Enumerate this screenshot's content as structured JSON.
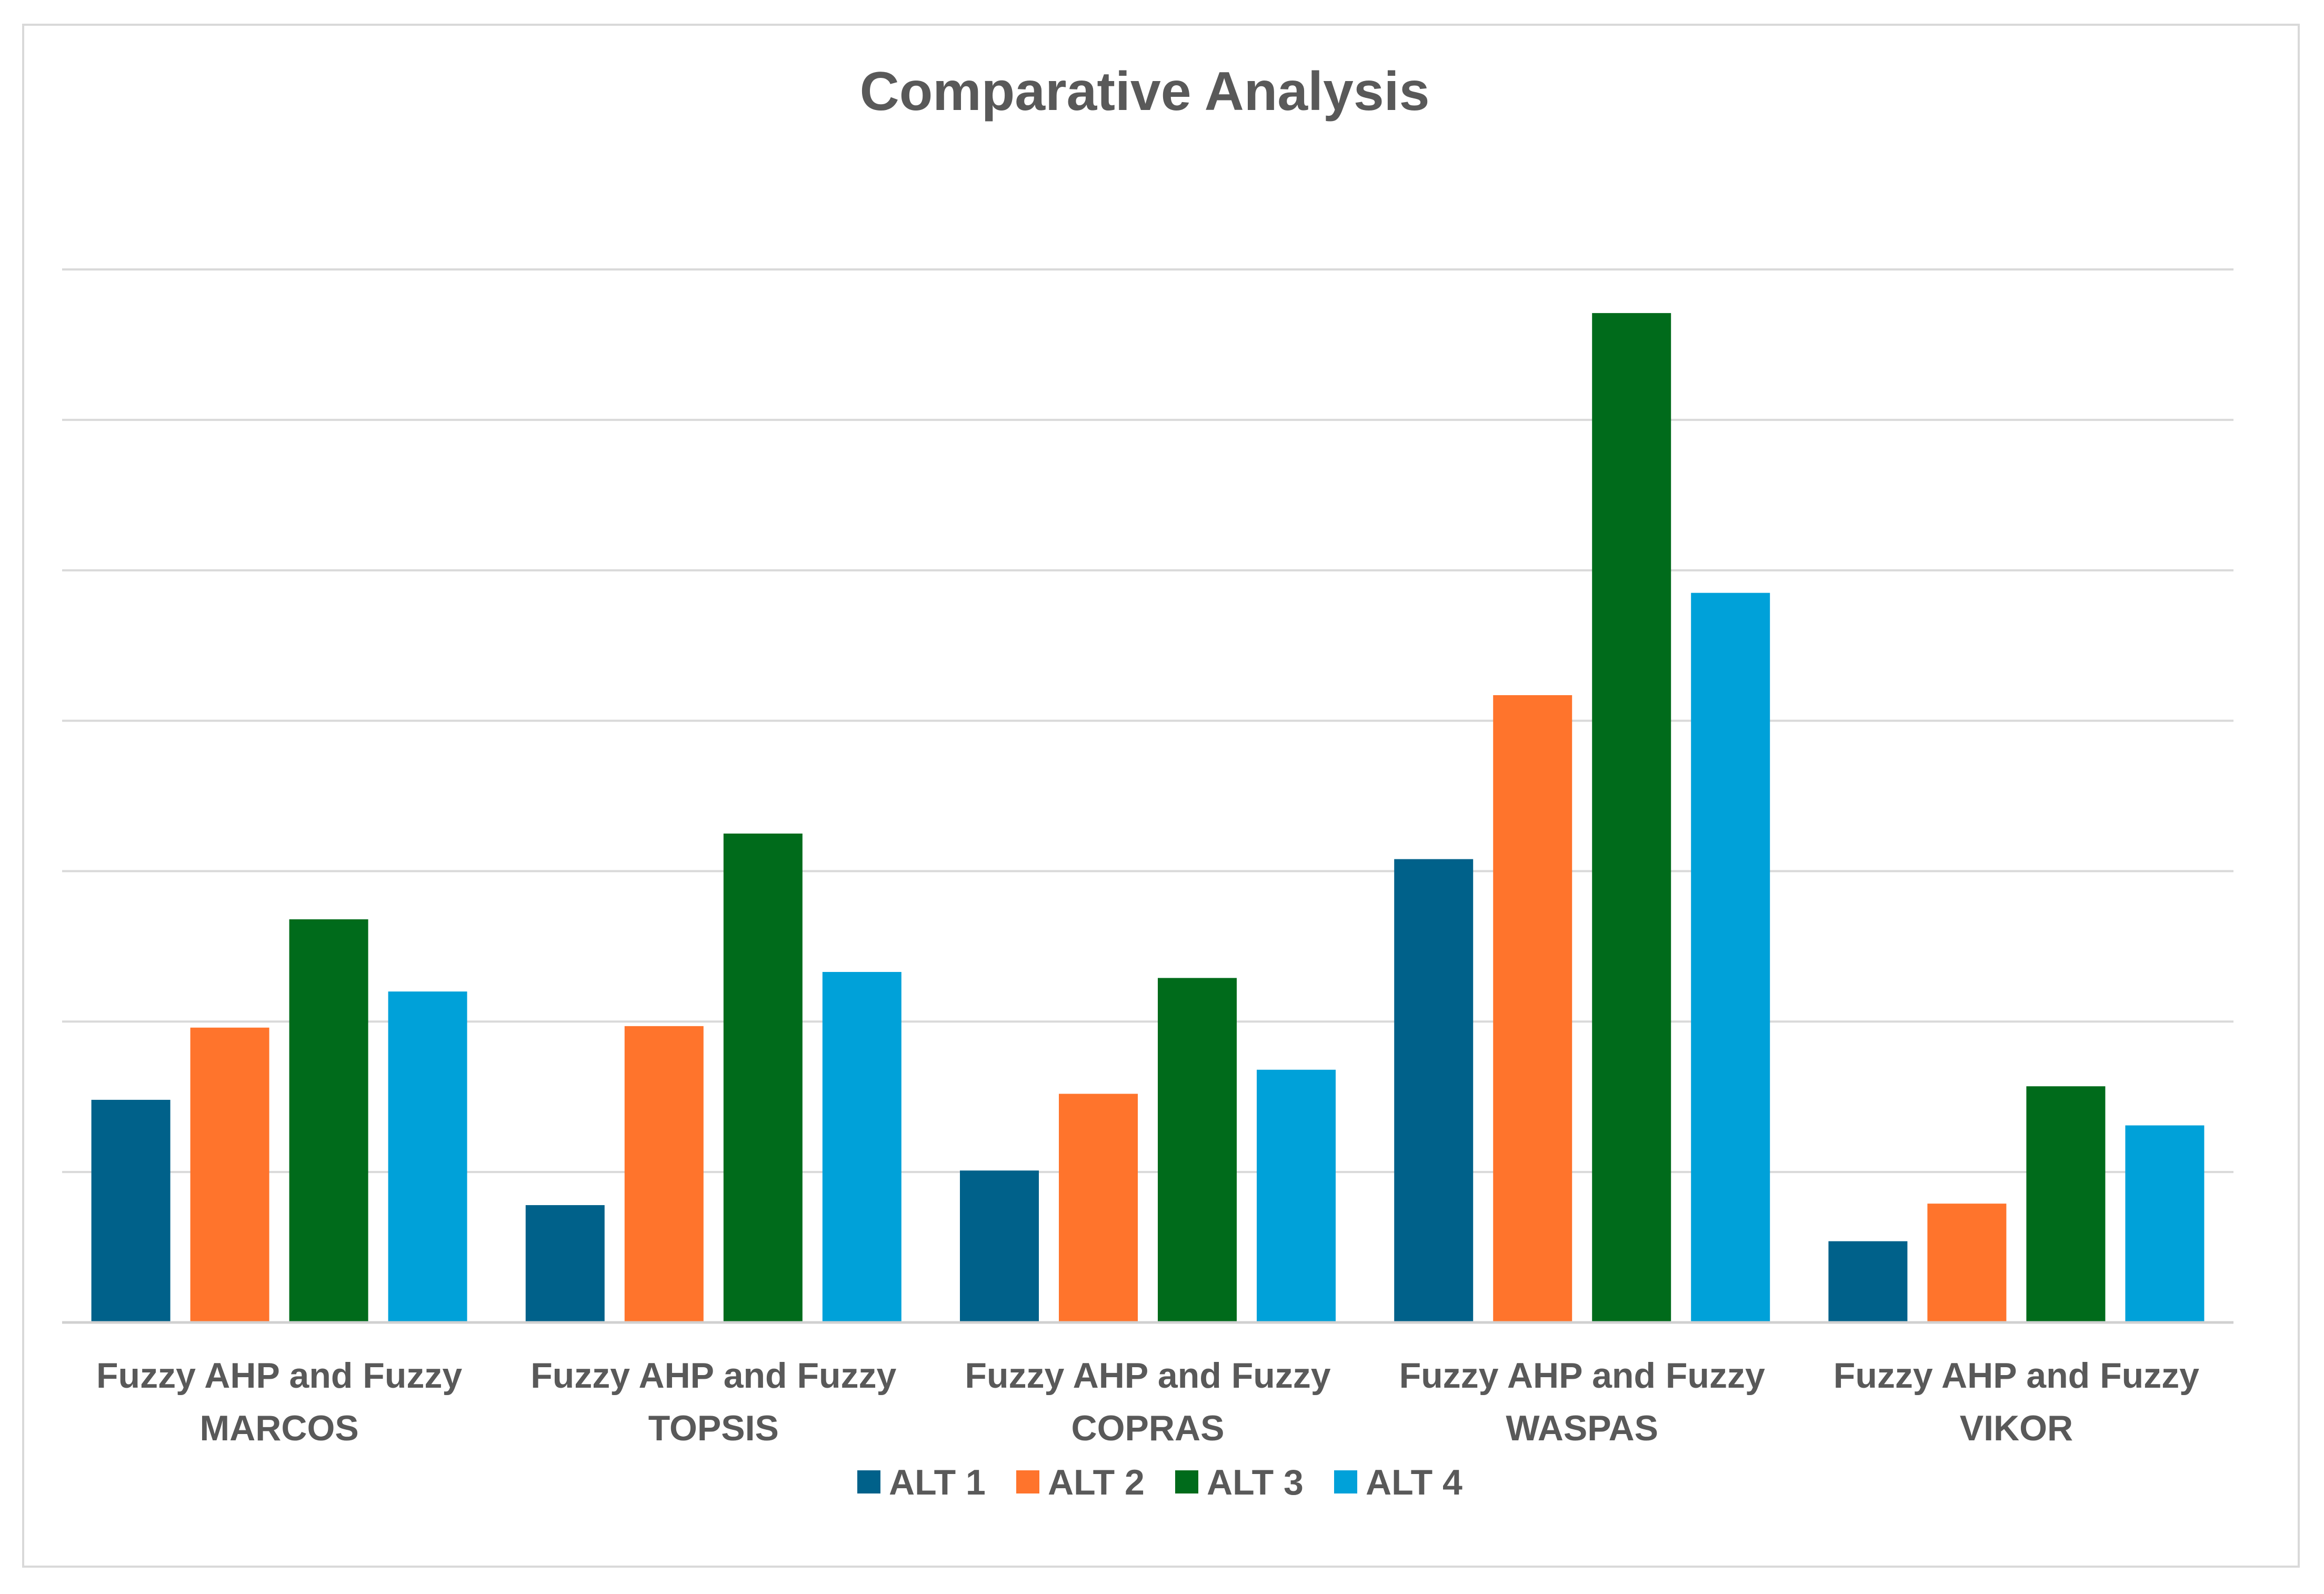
{
  "chart_data": {
    "type": "bar",
    "title": "Comparative Analysis",
    "xlabel": "",
    "ylabel": "",
    "grid": true,
    "y_axis_labels_shown": false,
    "ylim": [
      0,
      7
    ],
    "gridlines": [
      1,
      2,
      3,
      4,
      5,
      6,
      7
    ],
    "legend_position": "bottom",
    "categories": [
      [
        "Fuzzy AHP and Fuzzy",
        "MARCOS"
      ],
      [
        "Fuzzy AHP and Fuzzy",
        "TOPSIS"
      ],
      [
        "Fuzzy AHP and Fuzzy",
        "COPRAS"
      ],
      [
        "Fuzzy AHP and Fuzzy",
        "WASPAS"
      ],
      [
        "Fuzzy AHP and Fuzzy",
        "VIKOR"
      ]
    ],
    "series": [
      {
        "name": "ALT 1",
        "color": "#00618A",
        "values": [
          1.48,
          0.78,
          1.01,
          3.08,
          0.54
        ]
      },
      {
        "name": "ALT 2",
        "color": "#FF742C",
        "values": [
          1.96,
          1.97,
          1.52,
          4.17,
          0.79
        ]
      },
      {
        "name": "ALT 3",
        "color": "#006B1B",
        "values": [
          2.68,
          3.25,
          2.29,
          6.71,
          1.57
        ]
      },
      {
        "name": "ALT 4",
        "color": "#00A1D9",
        "values": [
          2.2,
          2.33,
          1.68,
          4.85,
          1.31
        ]
      }
    ]
  }
}
